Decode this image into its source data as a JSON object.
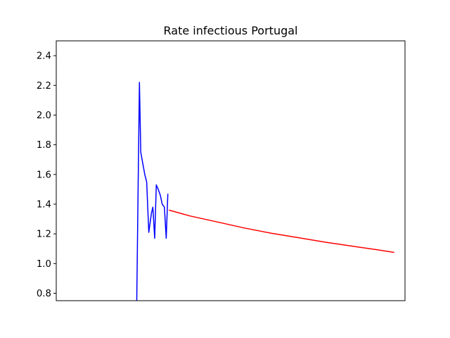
{
  "chart_data": {
    "type": "line",
    "title": "Rate infectious Portugal",
    "xlabel": "",
    "ylabel": "",
    "xlim": [
      0,
      130
    ],
    "ylim": [
      0.75,
      2.5
    ],
    "yticks": [
      "0.8",
      "1.0",
      "1.2",
      "1.4",
      "1.6",
      "1.8",
      "2.0",
      "2.2",
      "2.4"
    ],
    "grid": false,
    "series": [
      {
        "color": "#0000ff",
        "points": [
          [
            30.0,
            0.75
          ],
          [
            30.5,
            1.5
          ],
          [
            31.0,
            2.22
          ],
          [
            31.5,
            1.75
          ],
          [
            32.0,
            1.7
          ],
          [
            32.5,
            1.65
          ],
          [
            33.0,
            1.6
          ],
          [
            33.7,
            1.55
          ],
          [
            34.5,
            1.21
          ],
          [
            35.5,
            1.34
          ],
          [
            36.0,
            1.38
          ],
          [
            36.7,
            1.17
          ],
          [
            37.3,
            1.53
          ],
          [
            38.0,
            1.5
          ],
          [
            38.8,
            1.46
          ],
          [
            39.5,
            1.4
          ],
          [
            40.3,
            1.38
          ],
          [
            41.0,
            1.17
          ],
          [
            41.6,
            1.47
          ]
        ]
      },
      {
        "color": "#ff0000",
        "points": [
          [
            42.0,
            1.36
          ],
          [
            50,
            1.32
          ],
          [
            60,
            1.28
          ],
          [
            70,
            1.24
          ],
          [
            80,
            1.205
          ],
          [
            90,
            1.175
          ],
          [
            100,
            1.145
          ],
          [
            110,
            1.118
          ],
          [
            120,
            1.092
          ],
          [
            126,
            1.075
          ]
        ]
      }
    ]
  }
}
